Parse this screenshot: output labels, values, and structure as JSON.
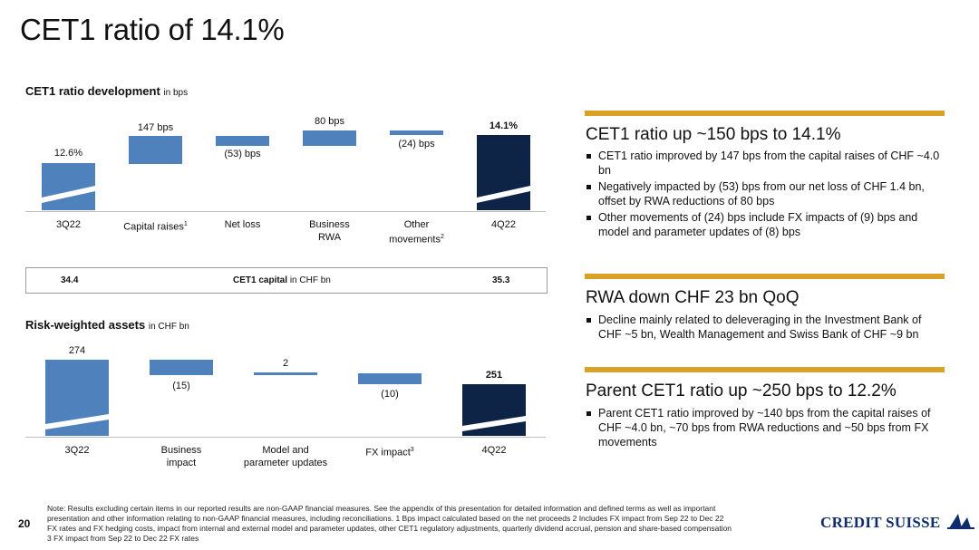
{
  "page_title": "CET1 ratio of 14.1%",
  "cet1_dev": {
    "heading": "CET1 ratio development",
    "unit": "in bps",
    "categories": [
      "3Q22",
      "Capital raises",
      "Net loss",
      "Business RWA",
      "Other movements",
      "4Q22"
    ],
    "footnotes": [
      "",
      "1",
      "",
      "",
      "2",
      ""
    ],
    "value_labels": [
      "12.6%",
      "147 bps",
      "(53) bps",
      "80 bps",
      "(24) bps",
      "14.1%"
    ],
    "cat_lines": {
      "business_rwa_1": "Business",
      "business_rwa_2": "RWA",
      "other_1": "Other",
      "other_2": "movements"
    }
  },
  "cet1_capital": {
    "label": "CET1 capital",
    "unit": "in CHF bn",
    "start": "34.4",
    "end": "35.3"
  },
  "rwa": {
    "heading": "Risk-weighted assets",
    "unit": "in CHF bn",
    "categories": [
      "3Q22",
      "Business impact",
      "Model and parameter updates",
      "FX impact",
      "4Q22"
    ],
    "value_labels": [
      "274",
      "(15)",
      "2",
      "(10)",
      "251"
    ],
    "cat_lines": {
      "bi_1": "Business",
      "bi_2": "impact",
      "mp_1": "Model and",
      "mp_2": "parameter updates",
      "fx": "FX impact",
      "fx_note": "3"
    }
  },
  "chart_data": [
    {
      "type": "bar",
      "title": "CET1 ratio development",
      "subtitle": "in bps",
      "categories": [
        "3Q22",
        "Capital raises",
        "Net loss",
        "Business RWA",
        "Other movements",
        "4Q22"
      ],
      "values": [
        1260,
        147,
        -53,
        80,
        -24,
        1410
      ],
      "value_labels": [
        "12.6%",
        "147 bps",
        "(53) bps",
        "80 bps",
        "(24) bps",
        "14.1%"
      ],
      "style": "waterfall"
    },
    {
      "type": "bar",
      "title": "Risk-weighted assets",
      "subtitle": "in CHF bn",
      "categories": [
        "3Q22",
        "Business impact",
        "Model and parameter updates",
        "FX impact",
        "4Q22"
      ],
      "values": [
        274,
        -15,
        2,
        -10,
        251
      ],
      "style": "waterfall"
    }
  ],
  "right": {
    "s1": {
      "heading": "CET1 ratio up ~150 bps to 14.1%",
      "bullets": [
        "CET1 ratio improved by 147 bps from the capital raises of CHF ~4.0 bn",
        "Negatively impacted by (53) bps from our net loss of CHF 1.4 bn, offset by RWA reductions of 80 bps",
        "Other movements of (24) bps include FX impacts of (9) bps and model and parameter updates of (8) bps"
      ]
    },
    "s2": {
      "heading": "RWA down CHF 23 bn QoQ",
      "bullets": [
        "Decline mainly related to deleveraging in the Investment Bank of CHF ~5 bn, Wealth Management and Swiss Bank of CHF ~9 bn"
      ]
    },
    "s3": {
      "heading": "Parent CET1 ratio up ~250 bps to 12.2%",
      "bullets": [
        "Parent CET1 ratio improved by ~140 bps from the capital raises of CHF ~4.0 bn, ~70 bps from RWA reductions and ~50 bps from FX movements"
      ]
    },
    "accent_color": "#d9a227"
  },
  "footer": {
    "page_number": "20",
    "note_1": "Note: Results excluding certain items in our reported results are non-GAAP financial measures. See the appendix of this presentation for detailed information and defined terms as well as important",
    "note_2": "presentation and other information relating to non-GAAP financial measures, including reconciliations.      1 Bps impact calculated based on the net proceeds      2 Includes FX impact from Sep 22 to Dec 22",
    "note_3": "FX rates and FX hedging costs, impact from internal and external model and parameter updates, other CET1 regulatory adjustments, quarterly dividend accrual, pension and share-based compensation",
    "note_4": "3 FX impact from Sep 22 to Dec 22 FX rates",
    "logo_text": "CREDIT SUISSE"
  },
  "colors": {
    "bar_light": "#4f81bd",
    "bar_dark": "#0e2447"
  }
}
